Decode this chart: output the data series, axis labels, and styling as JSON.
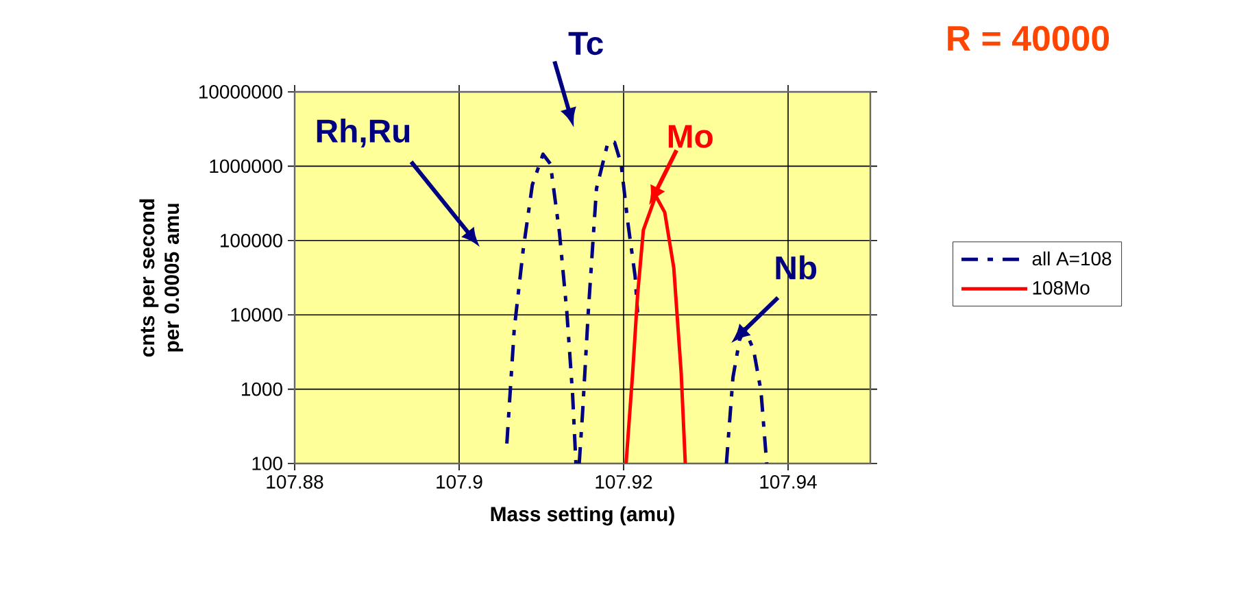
{
  "chart_data": {
    "type": "line",
    "xlabel": "Mass setting (amu)",
    "ylabel": "cnts per second per 0.0005 amu",
    "xlim": [
      107.88,
      107.95
    ],
    "xticks": [
      107.88,
      107.9,
      107.92,
      107.94
    ],
    "ylim": [
      100,
      10000000
    ],
    "yticks": [
      100,
      1000,
      10000,
      100000,
      1000000,
      10000000
    ],
    "log": "y",
    "grid": true,
    "legend": "right",
    "series": [
      {
        "name": "all A=108",
        "color": "#000080",
        "line_style": "dashed",
        "x": [
          107.9058,
          107.9067,
          107.9078,
          107.9089,
          107.9102,
          107.9111,
          107.9122,
          107.9131,
          107.9138,
          107.9142,
          107.9144,
          107.9146,
          107.915,
          107.9157,
          107.9167,
          107.9181,
          107.9189,
          107.9197,
          107.9205,
          107.9214,
          107.9217,
          107.927,
          107.9325,
          107.9333,
          107.9341,
          107.9347,
          107.9358,
          107.9367,
          107.9374
        ],
        "values": [
          186,
          6400,
          77000,
          560000,
          1450000,
          1070000,
          127000,
          10800,
          830,
          100,
          null,
          100,
          460,
          10800,
          500000,
          2100000,
          2100000,
          1070000,
          180000,
          33000,
          10800,
          null,
          100,
          1450,
          4600,
          6500,
          3400,
          950,
          100
        ]
      },
      {
        "name": "108Mo",
        "color": "#ff0000",
        "line_style": "solid",
        "x": [
          107.9203,
          107.9211,
          107.9217,
          107.9224,
          107.9239,
          107.925,
          107.9261,
          107.927,
          107.9275
        ],
        "values": [
          100,
          1660,
          18600,
          138000,
          400000,
          240000,
          43000,
          1660,
          100
        ]
      }
    ],
    "annotations": [
      "Rh,Ru",
      {
        "text": "Tc",
        "x": 107.9181,
        "y": 2100000
      },
      {
        "text": "Mo",
        "x": 107.9231,
        "y": 300000
      },
      {
        "text": "Nb",
        "x": 107.9331,
        "y": 4200
      },
      "R = 40000"
    ]
  }
}
